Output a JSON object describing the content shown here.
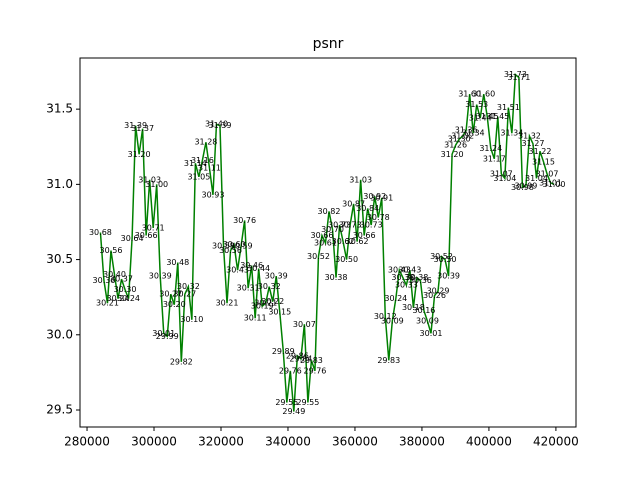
{
  "chart_data": {
    "type": "line",
    "title": "psnr",
    "x": [
      284000,
      285050,
      286100,
      287150,
      288200,
      289250,
      290300,
      291350,
      292400,
      293450,
      294500,
      295550,
      296600,
      297650,
      298700,
      299750,
      300800,
      301850,
      302900,
      303950,
      305000,
      306050,
      307100,
      308150,
      309200,
      310250,
      311300,
      312350,
      313400,
      314450,
      315500,
      316550,
      317600,
      318650,
      319700,
      320750,
      321800,
      322850,
      323900,
      324950,
      326000,
      327050,
      328100,
      329150,
      330200,
      331250,
      332300,
      333350,
      334400,
      335450,
      336500,
      337550,
      338600,
      339650,
      340700,
      341750,
      342800,
      343850,
      344900,
      345950,
      347000,
      348050,
      349100,
      350150,
      351200,
      352250,
      353300,
      354350,
      355400,
      356450,
      357500,
      358550,
      359600,
      360650,
      361700,
      362750,
      363800,
      364850,
      365900,
      366950,
      368000,
      369050,
      370100,
      371150,
      372200,
      373250,
      374300,
      375350,
      376400,
      377450,
      378500,
      379550,
      380600,
      381650,
      382700,
      383750,
      384800,
      385850,
      386900,
      387950,
      389000,
      390050,
      391100,
      392150,
      393200,
      394250,
      395300,
      396350,
      397400,
      398450,
      399500,
      400550,
      401600,
      402650,
      403700,
      404750,
      405800,
      406850,
      407900,
      408950,
      410000,
      411050,
      412100,
      413150,
      414200,
      415250,
      416300,
      417350,
      418400,
      419450
    ],
    "series": [
      {
        "color": "#008000",
        "values": [
          30.68,
          30.36,
          30.21,
          30.56,
          30.4,
          30.24,
          30.37,
          30.3,
          30.24,
          30.64,
          31.39,
          31.2,
          31.37,
          30.66,
          31.03,
          30.71,
          31,
          30.39,
          30.01,
          29.99,
          30.27,
          30.2,
          30.48,
          29.82,
          30.27,
          30.32,
          30.1,
          31.14,
          31.05,
          31.16,
          31.28,
          31.11,
          30.93,
          31.4,
          31.39,
          30.59,
          30.21,
          30.56,
          30.6,
          30.43,
          30.59,
          30.76,
          30.31,
          30.46,
          30.11,
          30.44,
          30.19,
          30.21,
          30.32,
          30.22,
          30.39,
          30.15,
          29.89,
          29.55,
          29.76,
          29.49,
          29.86,
          29.84,
          30.07,
          29.55,
          29.83,
          29.76,
          30.52,
          30.66,
          30.61,
          30.82,
          30.7,
          30.38,
          30.73,
          30.62,
          30.5,
          30.73,
          30.87,
          30.62,
          31.03,
          30.66,
          30.84,
          30.73,
          30.92,
          30.78,
          30.91,
          30.12,
          29.83,
          30.09,
          30.24,
          30.43,
          30.38,
          30.33,
          30.43,
          30.18,
          30.38,
          30.36,
          30.16,
          30.09,
          30.01,
          30.26,
          30.29,
          30.52,
          30.5,
          30.39,
          31.2,
          31.26,
          31.3,
          31.32,
          31.36,
          31.6,
          31.34,
          31.53,
          31.44,
          31.6,
          31.45,
          31.24,
          31.17,
          31.45,
          31.07,
          31.04,
          31.51,
          31.34,
          31.73,
          31.71,
          30.98,
          30.99,
          31.32,
          31.27,
          31.04,
          31.22,
          31.15,
          31.07,
          31.01,
          31
        ],
        "value_labels": [
          "30.68",
          "30.36",
          "30.21",
          "30.56",
          "30.40",
          "30.24",
          "30.37",
          "30.30",
          "30.24",
          "30.64",
          "31.39",
          "31.20",
          "31.37",
          "30.66",
          "31.03",
          "30.71",
          "31.00",
          "30.39",
          "30.01",
          "29.99",
          "30.27",
          "30.20",
          "30.48",
          "29.82",
          "30.27",
          "30.32",
          "30.10",
          "31.14",
          "31.05",
          "31.16",
          "31.28",
          "31.11",
          "30.93",
          "31.40",
          "31.39",
          "30.59",
          "30.21",
          "30.56",
          "30.60",
          "30.43",
          "30.59",
          "30.76",
          "30.31",
          "30.46",
          "30.11",
          "30.44",
          "30.19",
          "30.21",
          "30.32",
          "30.22",
          "30.39",
          "30.15",
          "29.89",
          "29.55",
          "29.76",
          "29.49",
          "29.86",
          "29.84",
          "30.07",
          "29.55",
          "29.83",
          "29.76",
          "30.52",
          "30.66",
          "30.61",
          "30.82",
          "30.70",
          "30.38",
          "30.73",
          "30.62",
          "30.50",
          "30.73",
          "30.87",
          "30.62",
          "31.03",
          "30.66",
          "30.84",
          "30.73",
          "30.92",
          "30.78",
          "30.91",
          "30.12",
          "29.83",
          "30.09",
          "30.24",
          "30.43",
          "30.38",
          "30.33",
          "30.43",
          "30.18",
          "30.38",
          "30.36",
          "30.16",
          "30.09",
          "30.01",
          "30.26",
          "30.29",
          "30.52",
          "30.50",
          "30.39",
          "31.20",
          "31.26",
          "31.30",
          "31.32",
          "31.36",
          "31.60",
          "31.34",
          "31.53",
          "31.44",
          "31.60",
          "31.45",
          "31.24",
          "31.17",
          "31.45",
          "31.07",
          "31.04",
          "31.51",
          "31.34",
          "31.73",
          "31.71",
          "30.98",
          "30.99",
          "31.32",
          "31.27",
          "31.04",
          "31.22",
          "31.15",
          "31.07",
          "31.01",
          "31.00"
        ]
      }
    ],
    "xlim": [
      277900,
      426000
    ],
    "ylim": [
      29.387,
      31.84
    ],
    "xticks": [
      280000,
      300000,
      320000,
      340000,
      360000,
      380000,
      400000,
      420000
    ],
    "yticks": [
      29.5,
      {
        "value": 30,
        "label": "30.0"
      },
      30.5,
      {
        "value": 31,
        "label": "31.0"
      },
      31.5
    ]
  }
}
